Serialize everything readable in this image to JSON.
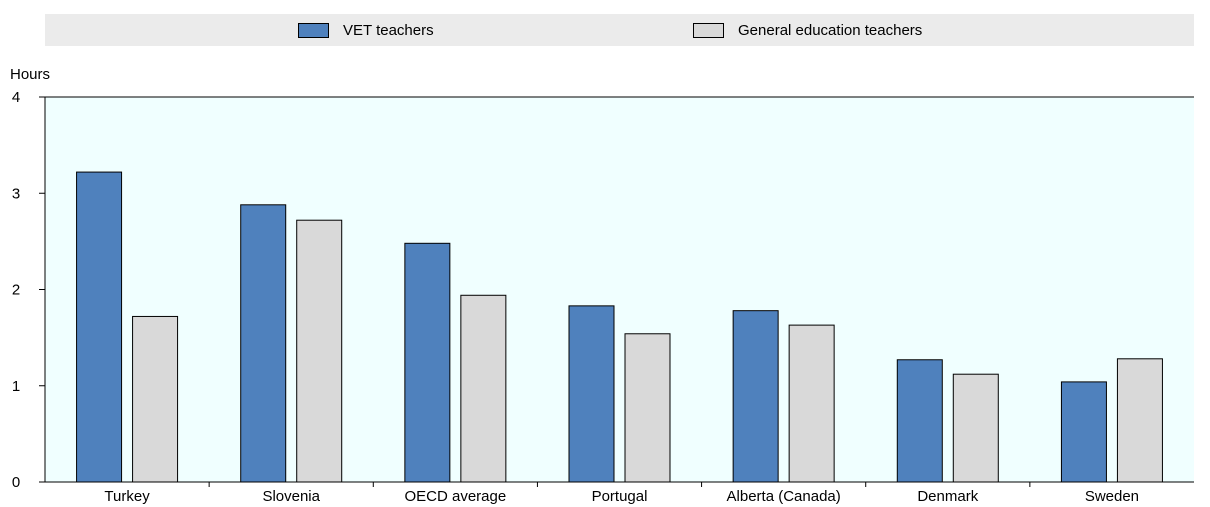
{
  "chart_data": {
    "type": "bar",
    "categories": [
      "Turkey",
      "Slovenia",
      "OECD average",
      "Portugal",
      "Alberta (Canada)",
      "Denmark",
      "Sweden"
    ],
    "series": [
      {
        "name": "VET teachers",
        "color": "#4f81bd",
        "values": [
          3.22,
          2.88,
          2.48,
          1.83,
          1.78,
          1.27,
          1.04
        ]
      },
      {
        "name": "General education teachers",
        "color": "#d9d9d9",
        "values": [
          1.72,
          2.72,
          1.94,
          1.54,
          1.63,
          1.12,
          1.28
        ]
      }
    ],
    "ylabel": "Hours",
    "ylim": [
      0,
      4
    ],
    "yticks": [
      "0",
      "1",
      "2",
      "3",
      "4"
    ],
    "grid": false,
    "plot_background": "#f0ffff",
    "legend_position": "top"
  }
}
